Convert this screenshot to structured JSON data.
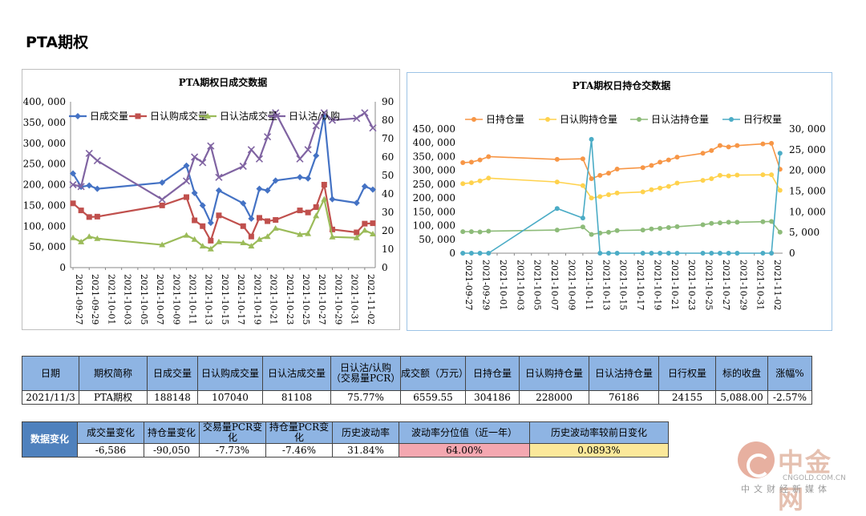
{
  "page_title": "PTA期权",
  "chart_data": [
    {
      "type": "line",
      "title": "PTA期权日成交数据",
      "x": [
        "2021-09-27",
        "2021-09-28",
        "2021-09-29",
        "2021-09-30",
        "2021-10-08",
        "2021-10-11",
        "2021-10-12",
        "2021-10-13",
        "2021-10-14",
        "2021-10-15",
        "2021-10-18",
        "2021-10-19",
        "2021-10-20",
        "2021-10-21",
        "2021-10-22",
        "2021-10-25",
        "2021-10-26",
        "2021-10-27",
        "2021-10-28",
        "2021-10-29",
        "2021-11-01",
        "2021-11-02",
        "2021-11-03"
      ],
      "x_tick_labels": [
        "2021-09-27",
        "2021-09-29",
        "2021-10-01",
        "2021-10-03",
        "2021-10-05",
        "2021-10-07",
        "2021-10-09",
        "2021-10-11",
        "2021-10-13",
        "2021-10-15",
        "2021-10-17",
        "2021-10-19",
        "2021-10-21",
        "2021-10-23",
        "2021-10-25",
        "2021-10-27",
        "2021-10-29",
        "2021-10-31",
        "2021-11-02"
      ],
      "ylim": [
        0,
        400000
      ],
      "y_ticks": [
        "0",
        "50, 000",
        "100, 000",
        "150, 000",
        "200, 000",
        "250, 000",
        "300, 000",
        "350, 000",
        "400, 000"
      ],
      "y2lim": [
        0,
        90
      ],
      "y2_ticks": [
        "0",
        "10",
        "20",
        "30",
        "40",
        "50",
        "60",
        "70",
        "80",
        "90"
      ],
      "series": [
        {
          "name": "日成交量",
          "color": "#4472c4",
          "marker": "diamond",
          "axis": "left",
          "values": [
            227000,
            195000,
            198000,
            190000,
            205000,
            246000,
            180000,
            150000,
            108000,
            186000,
            155000,
            118000,
            190000,
            186000,
            210000,
            218000,
            215000,
            270000,
            368000,
            165000,
            156000,
            196000,
            188148
          ]
        },
        {
          "name": "日认购成交量",
          "color": "#c0504d",
          "marker": "square",
          "axis": "left",
          "values": [
            155000,
            138000,
            122000,
            123000,
            150000,
            170000,
            114000,
            100000,
            65000,
            126000,
            100000,
            75000,
            120000,
            112000,
            115000,
            138000,
            133000,
            146000,
            200000,
            92000,
            85000,
            106000,
            107040
          ]
        },
        {
          "name": "日认沽成交量",
          "color": "#9bbb59",
          "marker": "triangle",
          "axis": "left",
          "values": [
            72000,
            62000,
            75000,
            70000,
            55000,
            78000,
            68000,
            52000,
            45000,
            62000,
            60000,
            52000,
            68000,
            75000,
            95000,
            80000,
            82000,
            125000,
            165000,
            74000,
            72000,
            90000,
            81108
          ]
        },
        {
          "name": "日认沽/认购",
          "color": "#8064a2",
          "marker": "x",
          "axis": "right",
          "values": [
            45,
            44,
            62,
            58,
            37,
            47,
            60,
            57,
            66,
            49,
            55,
            64,
            59,
            71,
            84,
            59,
            64,
            77,
            84,
            80,
            81,
            84,
            75.77
          ]
        }
      ]
    },
    {
      "type": "line",
      "title": "PTA期权日持仓交数据",
      "x": [
        "2021-09-27",
        "2021-09-28",
        "2021-09-29",
        "2021-09-30",
        "2021-10-08",
        "2021-10-11",
        "2021-10-12",
        "2021-10-13",
        "2021-10-14",
        "2021-10-15",
        "2021-10-18",
        "2021-10-19",
        "2021-10-20",
        "2021-10-21",
        "2021-10-22",
        "2021-10-25",
        "2021-10-26",
        "2021-10-27",
        "2021-10-28",
        "2021-10-29",
        "2021-11-01",
        "2021-11-02",
        "2021-11-03"
      ],
      "x_tick_labels": [
        "2021-09-27",
        "2021-09-29",
        "2021-10-01",
        "2021-10-03",
        "2021-10-05",
        "2021-10-07",
        "2021-10-09",
        "2021-10-11",
        "2021-10-13",
        "2021-10-15",
        "2021-10-17",
        "2021-10-19",
        "2021-10-21",
        "2021-10-23",
        "2021-10-25",
        "2021-10-27",
        "2021-10-29",
        "2021-10-31",
        "2021-11-02"
      ],
      "ylim": [
        0,
        450000
      ],
      "y_ticks": [
        "0",
        "50, 000",
        "100, 000",
        "150, 000",
        "200, 000",
        "250, 000",
        "300, 000",
        "350, 000",
        "400, 000",
        "450, 000"
      ],
      "y2lim": [
        0,
        30000
      ],
      "y2_ticks": [
        "0",
        "5, 000",
        "10, 000",
        "15, 000",
        "20, 000",
        "25, 000",
        "30, 000"
      ],
      "series": [
        {
          "name": "日持仓量",
          "color": "#f79646",
          "marker": "circle",
          "axis": "left",
          "values": [
            328000,
            330000,
            338000,
            350000,
            340000,
            342000,
            270000,
            282000,
            290000,
            305000,
            310000,
            318000,
            330000,
            338000,
            348000,
            362000,
            372000,
            390000,
            385000,
            390000,
            396000,
            398000,
            304186
          ]
        },
        {
          "name": "日认购持仓量",
          "color": "#ffd24d",
          "marker": "circle",
          "axis": "left",
          "values": [
            252000,
            255000,
            262000,
            272000,
            258000,
            245000,
            200000,
            205000,
            212000,
            218000,
            222000,
            230000,
            236000,
            242000,
            254000,
            264000,
            270000,
            282000,
            280000,
            283000,
            284000,
            284000,
            228000
          ]
        },
        {
          "name": "日认沽持仓量",
          "color": "#8dbb79",
          "marker": "circle",
          "axis": "left",
          "values": [
            78000,
            78000,
            77000,
            80000,
            84000,
            95000,
            68000,
            73000,
            76000,
            82000,
            84000,
            88000,
            90000,
            93000,
            96000,
            103000,
            108000,
            110000,
            112000,
            112000,
            114000,
            115000,
            76186
          ]
        },
        {
          "name": "日行权量",
          "color": "#4bacc6",
          "marker": "circle",
          "axis": "right",
          "values": [
            0,
            0,
            0,
            0,
            10800,
            8500,
            27500,
            0,
            0,
            0,
            0,
            0,
            0,
            0,
            0,
            0,
            0,
            0,
            0,
            0,
            0,
            0,
            24155
          ]
        }
      ]
    }
  ],
  "table1": {
    "headers": [
      "日期",
      "期权简称",
      "日成交量",
      "日认购成交量",
      "日认沽成交量",
      "日认沽/认购（交易量PCR）",
      "成交额（万元）",
      "日持仓量",
      "日认购持仓量",
      "日认沽持仓量",
      "日行权量",
      "标的收盘",
      "涨幅%"
    ],
    "values": [
      "2021/11/3",
      "PTA期权",
      "188148",
      "107040",
      "81108",
      "75.77%",
      "6559.55",
      "304186",
      "228000",
      "76186",
      "24155",
      "5,088.00",
      "-2.57%"
    ]
  },
  "table2": {
    "row_label": "数据变化",
    "headers": [
      "成交量变化",
      "持仓量变化",
      "交易量PCR变化",
      "持仓量PCR变化",
      "历史波动率",
      "波动率分位值（近一年）",
      "历史波动率较前日变化"
    ],
    "values": [
      "-6,586",
      "-90,050",
      "-7.73%",
      "-7.46%",
      "31.84%",
      "64.00%",
      "0.0893%"
    ]
  },
  "watermark": {
    "name": "中金网",
    "url": "CNGOLD.COM.CN",
    "sub": "中文财经新媒体"
  }
}
